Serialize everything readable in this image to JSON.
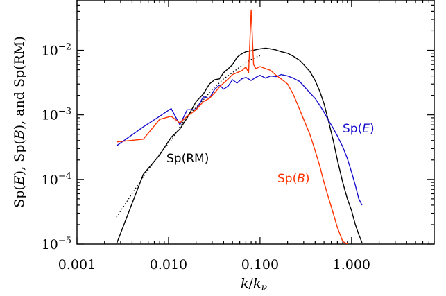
{
  "chart_data": {
    "type": "line",
    "xscale": "log",
    "yscale": "log",
    "xlim": [
      0.001,
      8.0
    ],
    "ylim": [
      1e-05,
      0.06
    ],
    "xlabel": "k/k_ν",
    "ylabel": "Sp(E), Sp(B), and Sp(RM)",
    "xlabel_parts": {
      "num": "k",
      "slash": "/",
      "den": "k",
      "sub": "ν"
    },
    "ylabel_parts": {
      "p1": "Sp(",
      "e": "E",
      "p2": "), Sp(",
      "b": "B",
      "p3": "), and Sp(RM)"
    },
    "x_ticks": [
      {
        "value": 0.001,
        "label": "0.001"
      },
      {
        "value": 0.01,
        "label": "0.010"
      },
      {
        "value": 0.1,
        "label": "0.100"
      },
      {
        "value": 1.0,
        "label": "1.000"
      }
    ],
    "y_ticks": [
      {
        "value": 1e-05,
        "base": "10",
        "exp": "−5"
      },
      {
        "value": 0.0001,
        "base": "10",
        "exp": "−4"
      },
      {
        "value": 0.001,
        "base": "10",
        "exp": "−3"
      },
      {
        "value": 0.01,
        "base": "10",
        "exp": "−2"
      }
    ],
    "series": [
      {
        "key": "rm",
        "label_text": "Sp(RM)",
        "color": "#000000",
        "style": "solid",
        "x": [
          0.0027,
          0.0053,
          0.008,
          0.0107,
          0.0133,
          0.016,
          0.02,
          0.024,
          0.028,
          0.032,
          0.036,
          0.04,
          0.045,
          0.05,
          0.056,
          0.063,
          0.07,
          0.08,
          0.09,
          0.1,
          0.115,
          0.13,
          0.15,
          0.17,
          0.2,
          0.23,
          0.27,
          0.3,
          0.35,
          0.4,
          0.45,
          0.5,
          0.56,
          0.63,
          0.7,
          0.8,
          0.9,
          1.0,
          1.1,
          1.2,
          1.3
        ],
        "y": [
          1e-05,
          0.00012,
          0.00024,
          0.00045,
          0.0006,
          0.0009,
          0.0016,
          0.0021,
          0.003,
          0.0035,
          0.0036,
          0.0045,
          0.0052,
          0.006,
          0.0078,
          0.0088,
          0.0095,
          0.0098,
          0.0102,
          0.0105,
          0.0108,
          0.0105,
          0.0101,
          0.0095,
          0.009,
          0.0081,
          0.007,
          0.006,
          0.0047,
          0.0034,
          0.0023,
          0.0015,
          0.0008,
          0.0004,
          0.0002,
          9e-05,
          5e-05,
          3.3e-05,
          2e-05,
          1.4e-05,
          1.05e-05
        ]
      },
      {
        "key": "rm_dotted",
        "label_text": "",
        "color": "#000000",
        "style": "dotted",
        "x": [
          0.0027,
          0.0053,
          0.008,
          0.0107,
          0.0133,
          0.016,
          0.02,
          0.024,
          0.028,
          0.032,
          0.04,
          0.05,
          0.06,
          0.07,
          0.08,
          0.09,
          0.1
        ],
        "y": [
          2.6e-05,
          0.00011,
          0.00025,
          0.0004,
          0.00065,
          0.00095,
          0.0013,
          0.0017,
          0.0022,
          0.0027,
          0.0036,
          0.0045,
          0.0055,
          0.0065,
          0.0072,
          0.0078,
          0.0082
        ]
      },
      {
        "key": "e",
        "label_text": "Sp(E)",
        "color": "#1a0fcc",
        "style": "solid",
        "x": [
          0.0027,
          0.0053,
          0.008,
          0.0107,
          0.0133,
          0.016,
          0.02,
          0.024,
          0.028,
          0.032,
          0.036,
          0.04,
          0.045,
          0.05,
          0.056,
          0.063,
          0.07,
          0.08,
          0.09,
          0.1,
          0.115,
          0.13,
          0.15,
          0.17,
          0.2,
          0.23,
          0.27,
          0.3,
          0.35,
          0.4,
          0.45,
          0.5,
          0.56,
          0.63,
          0.7,
          0.8,
          0.9,
          1.0,
          1.1,
          1.2,
          1.3
        ],
        "y": [
          0.00033,
          0.00065,
          0.00095,
          0.00125,
          0.0007,
          0.0012,
          0.0012,
          0.0019,
          0.0018,
          0.0025,
          0.0029,
          0.0025,
          0.0028,
          0.0035,
          0.0031,
          0.0036,
          0.0038,
          0.0034,
          0.0038,
          0.0041,
          0.0037,
          0.004,
          0.0039,
          0.0042,
          0.004,
          0.0037,
          0.0033,
          0.0028,
          0.0022,
          0.0018,
          0.0014,
          0.0011,
          0.00082,
          0.00062,
          0.00047,
          0.00032,
          0.00021,
          0.00013,
          8.1e-05,
          5e-05,
          4e-05
        ]
      },
      {
        "key": "b",
        "label_text": "Sp(B)",
        "color": "#ff3300",
        "style": "solid",
        "x": [
          0.0027,
          0.0053,
          0.008,
          0.0107,
          0.0133,
          0.016,
          0.02,
          0.024,
          0.028,
          0.032,
          0.036,
          0.04,
          0.045,
          0.05,
          0.056,
          0.063,
          0.07,
          0.075,
          0.08,
          0.085,
          0.09,
          0.1,
          0.115,
          0.13,
          0.15,
          0.17,
          0.2,
          0.23,
          0.26,
          0.3,
          0.35,
          0.4,
          0.45,
          0.5,
          0.56,
          0.63,
          0.7,
          0.8,
          0.9
        ],
        "y": [
          0.00038,
          0.00042,
          0.00085,
          0.00095,
          0.00075,
          0.00095,
          0.0012,
          0.0016,
          0.0018,
          0.0022,
          0.0027,
          0.0031,
          0.0036,
          0.0042,
          0.0045,
          0.0048,
          0.0055,
          0.0045,
          0.042,
          0.006,
          0.0052,
          0.0056,
          0.0052,
          0.0049,
          0.0041,
          0.0036,
          0.003,
          0.0021,
          0.0014,
          0.00085,
          0.0005,
          0.00028,
          0.00016,
          9e-05,
          5.2e-05,
          3e-05,
          1.8e-05,
          1.1e-05,
          1e-05
        ]
      }
    ],
    "labels": [
      {
        "series": "rm",
        "text": "Sp(RM)",
        "color": "#000000"
      },
      {
        "series": "b",
        "text_parts": [
          "Sp(",
          "B",
          ")"
        ],
        "color": "#ff3300"
      },
      {
        "series": "e",
        "text_parts": [
          "Sp(",
          "E",
          ")"
        ],
        "color": "#1a0fcc"
      }
    ]
  }
}
